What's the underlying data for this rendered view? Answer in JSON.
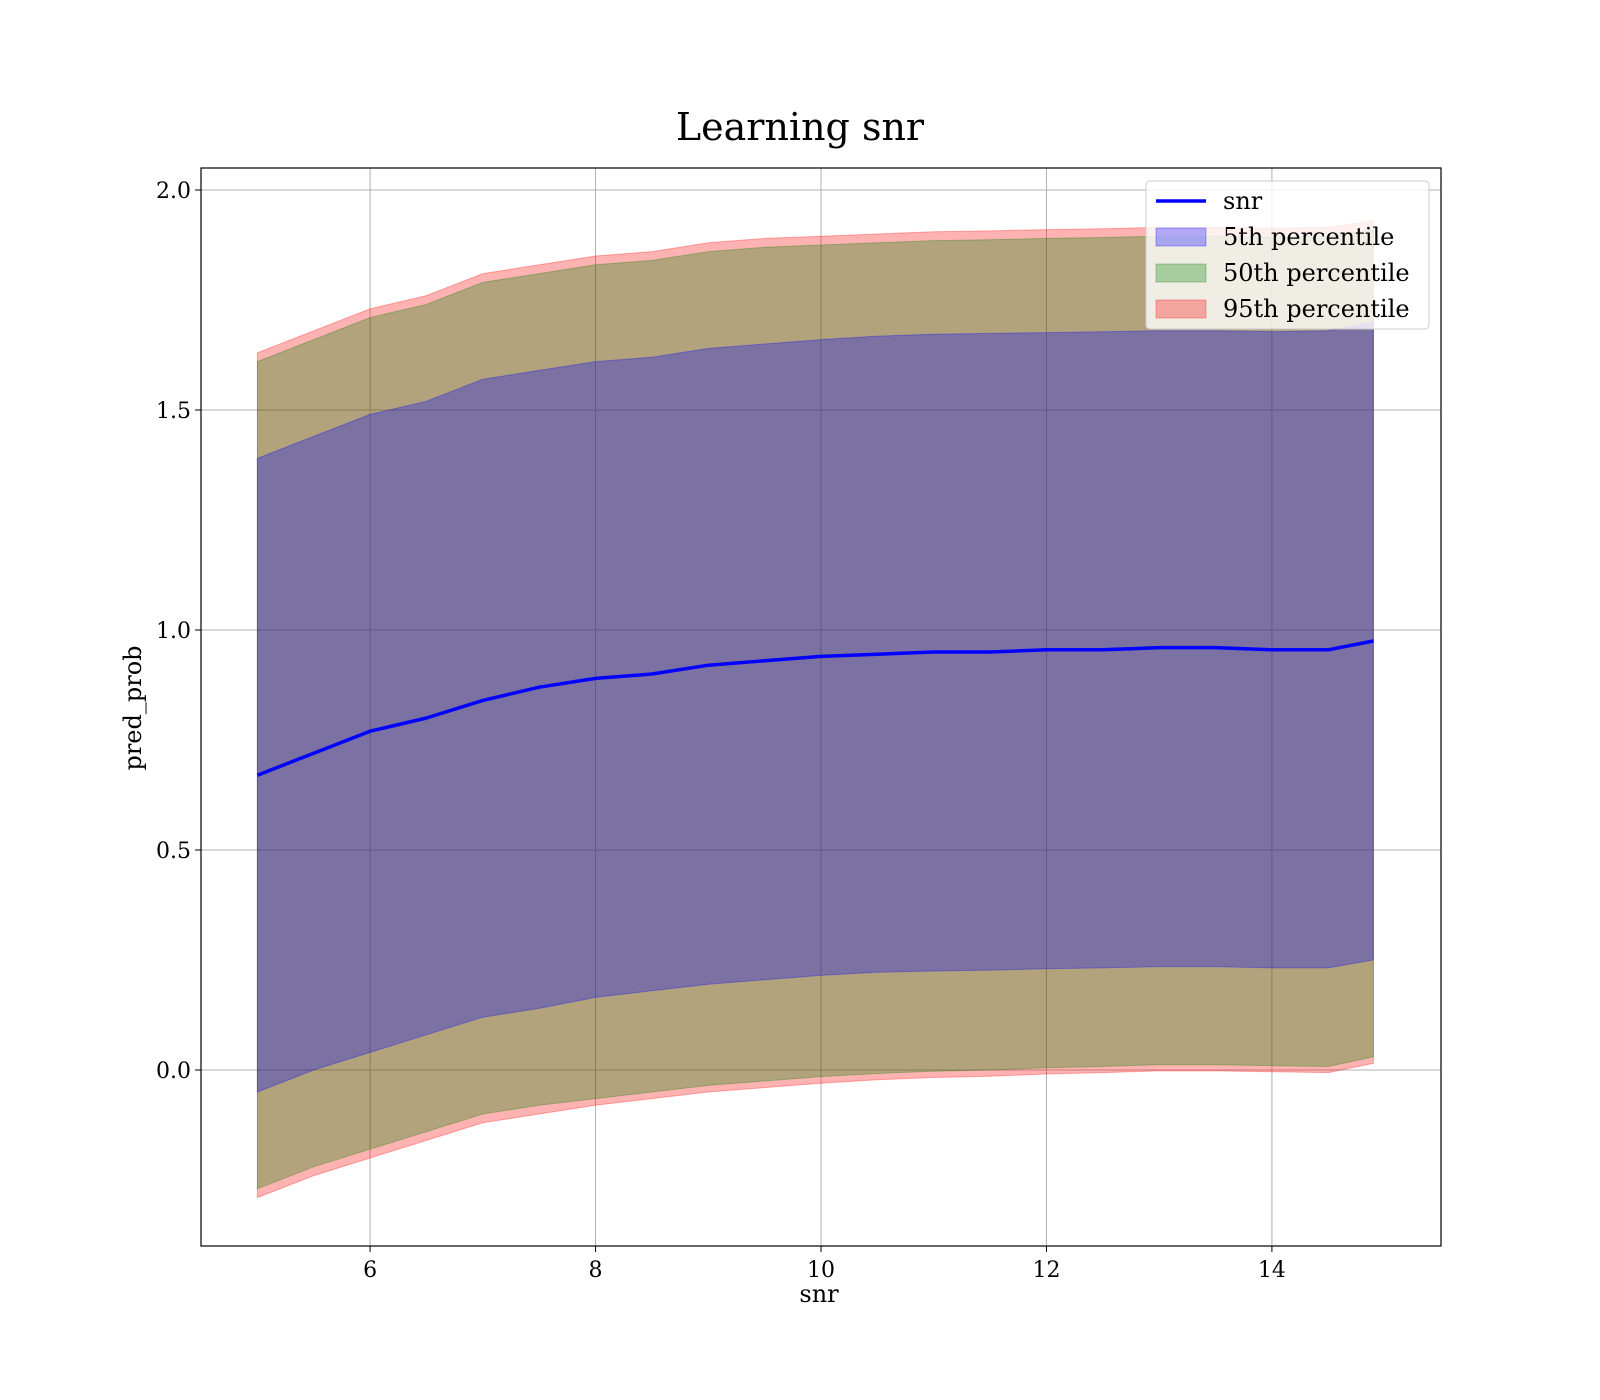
{
  "chart_data": {
    "type": "line",
    "title": "Learning snr",
    "xlabel": "snr",
    "ylabel": "pred_prob",
    "xlim": [
      4.5,
      15.5
    ],
    "ylim": [
      -0.4,
      2.05
    ],
    "xticks": [
      6,
      8,
      10,
      12,
      14
    ],
    "xtick_labels": [
      "6",
      "8",
      "10",
      "12",
      "14"
    ],
    "yticks": [
      0.0,
      0.5,
      1.0,
      1.5,
      2.0
    ],
    "ytick_labels": [
      "0.0",
      "0.5",
      "1.0",
      "1.5",
      "2.0"
    ],
    "grid": true,
    "legend_position": "top-right",
    "x": [
      5.0,
      5.5,
      6.0,
      6.5,
      7.0,
      7.5,
      8.0,
      8.5,
      9.0,
      9.5,
      10.0,
      10.5,
      11.0,
      11.5,
      12.0,
      12.5,
      13.0,
      13.5,
      14.0,
      14.5,
      14.9
    ],
    "series": [
      {
        "name": "snr",
        "kind": "line",
        "color": "#0000ff",
        "values": [
          0.67,
          0.72,
          0.77,
          0.8,
          0.84,
          0.87,
          0.89,
          0.9,
          0.92,
          0.93,
          0.94,
          0.945,
          0.95,
          0.95,
          0.955,
          0.955,
          0.96,
          0.96,
          0.955,
          0.955,
          0.975
        ]
      },
      {
        "name": "5th percentile",
        "kind": "band",
        "color": "#0000ff",
        "lower": [
          -0.05,
          0.0,
          0.04,
          0.08,
          0.12,
          0.14,
          0.165,
          0.18,
          0.195,
          0.205,
          0.215,
          0.222,
          0.225,
          0.227,
          0.23,
          0.232,
          0.235,
          0.235,
          0.232,
          0.232,
          0.25
        ],
        "upper": [
          1.39,
          1.44,
          1.49,
          1.52,
          1.57,
          1.59,
          1.61,
          1.62,
          1.64,
          1.65,
          1.66,
          1.668,
          1.672,
          1.674,
          1.676,
          1.678,
          1.68,
          1.68,
          1.678,
          1.68,
          1.7
        ]
      },
      {
        "name": "50th percentile",
        "kind": "band",
        "color": "#008000",
        "lower": [
          -0.27,
          -0.22,
          -0.18,
          -0.14,
          -0.1,
          -0.08,
          -0.065,
          -0.05,
          -0.035,
          -0.025,
          -0.015,
          -0.008,
          -0.003,
          0.0,
          0.005,
          0.008,
          0.012,
          0.012,
          0.01,
          0.008,
          0.03
        ],
        "upper": [
          1.61,
          1.66,
          1.71,
          1.74,
          1.79,
          1.81,
          1.83,
          1.84,
          1.86,
          1.87,
          1.875,
          1.88,
          1.885,
          1.887,
          1.89,
          1.892,
          1.895,
          1.895,
          1.893,
          1.895,
          1.91
        ]
      },
      {
        "name": "95th percentile",
        "kind": "band",
        "color": "#ff0000",
        "lower": [
          -0.29,
          -0.24,
          -0.2,
          -0.16,
          -0.12,
          -0.1,
          -0.08,
          -0.065,
          -0.05,
          -0.04,
          -0.03,
          -0.022,
          -0.017,
          -0.014,
          -0.009,
          -0.006,
          -0.002,
          -0.002,
          -0.004,
          -0.006,
          0.015
        ],
        "upper": [
          1.63,
          1.68,
          1.73,
          1.76,
          1.81,
          1.83,
          1.85,
          1.86,
          1.88,
          1.89,
          1.895,
          1.9,
          1.905,
          1.907,
          1.91,
          1.912,
          1.915,
          1.915,
          1.913,
          1.915,
          1.93
        ]
      }
    ]
  }
}
